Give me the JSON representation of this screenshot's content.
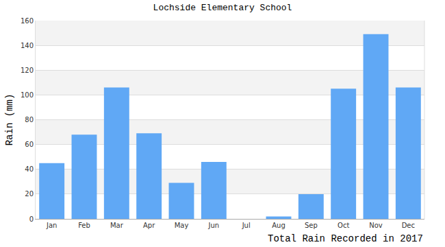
{
  "chart_data": {
    "type": "bar",
    "title": "Lochside Elementary School",
    "y_label": "Rain (mm)",
    "x_label": "Total Rain Recorded in 2017",
    "categories": [
      "Jan",
      "Feb",
      "Mar",
      "Apr",
      "May",
      "Jun",
      "Jul",
      "Aug",
      "Sep",
      "Oct",
      "Nov",
      "Dec"
    ],
    "values": [
      45,
      68,
      106,
      69,
      29,
      46,
      0,
      2,
      20,
      105,
      149,
      106
    ],
    "color": "#60a8f5",
    "ylim": [
      0,
      160
    ],
    "yticks": [
      0,
      20,
      40,
      60,
      80,
      100,
      120,
      140,
      160
    ],
    "grid": true
  }
}
